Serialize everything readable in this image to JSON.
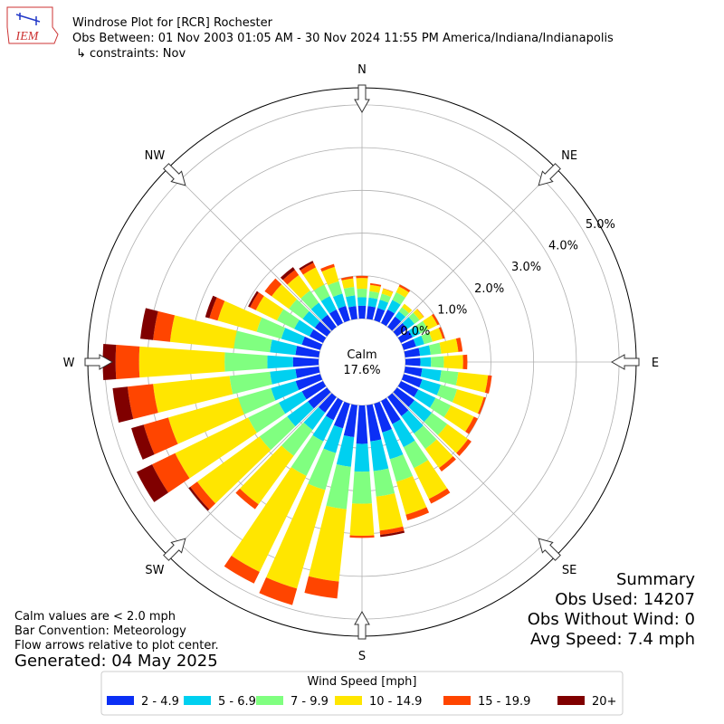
{
  "chart_data": {
    "type": "windrose",
    "title": "Windrose Plot for [RCR] Rochester",
    "subtitle": "Obs Between: 01 Nov 2003 01:05 AM - 30 Nov 2024 11:55 PM America/Indiana/Indianapolis",
    "constraints": "↳ constraints: Nov",
    "logo": "IEM",
    "calm_title": "Calm",
    "calm": {
      "value": 17.6,
      "label": "17.6%"
    },
    "compass": [
      "N",
      "NE",
      "E",
      "SE",
      "S",
      "SW",
      "W",
      "NW"
    ],
    "rlim": [
      0,
      5.4
    ],
    "rticks": [
      {
        "value": 0,
        "label": "0.0%"
      },
      {
        "value": 1,
        "label": "1.0%"
      },
      {
        "value": 2,
        "label": "2.0%"
      },
      {
        "value": 3,
        "label": "3.0%"
      },
      {
        "value": 4,
        "label": "4.0%"
      },
      {
        "value": 5,
        "label": "5.0%"
      }
    ],
    "x": [
      0,
      10,
      20,
      30,
      40,
      50,
      60,
      70,
      80,
      90,
      100,
      110,
      120,
      130,
      140,
      150,
      160,
      170,
      180,
      190,
      200,
      210,
      220,
      230,
      240,
      250,
      260,
      270,
      280,
      290,
      300,
      310,
      320,
      330,
      340,
      350
    ],
    "legend_title": "Wind Speed [mph]",
    "series": [
      {
        "name": "2 - 4.9",
        "color": "#0b2ff5",
        "values": [
          0.3,
          0.3,
          0.3,
          0.35,
          0.3,
          0.3,
          0.3,
          0.3,
          0.35,
          0.35,
          0.4,
          0.45,
          0.45,
          0.5,
          0.55,
          0.6,
          0.7,
          0.85,
          0.9,
          0.75,
          0.6,
          0.5,
          0.45,
          0.55,
          0.55,
          0.6,
          0.55,
          0.6,
          0.55,
          0.45,
          0.35,
          0.35,
          0.35,
          0.35,
          0.35,
          0.3
        ]
      },
      {
        "name": "5 - 6.9",
        "color": "#00d0f0",
        "values": [
          0.2,
          0.2,
          0.2,
          0.25,
          0.15,
          0.2,
          0.2,
          0.2,
          0.25,
          0.25,
          0.45,
          0.45,
          0.45,
          0.5,
          0.5,
          0.6,
          0.65,
          0.7,
          0.65,
          0.7,
          0.6,
          0.55,
          0.5,
          0.6,
          0.6,
          0.6,
          0.6,
          0.6,
          0.6,
          0.5,
          0.4,
          0.35,
          0.35,
          0.35,
          0.3,
          0.25
        ]
      },
      {
        "name": "7 - 9.9",
        "color": "#80ff80",
        "values": [
          0.2,
          0.15,
          0.15,
          0.2,
          0.12,
          0.15,
          0.2,
          0.2,
          0.25,
          0.3,
          0.4,
          0.4,
          0.4,
          0.45,
          0.45,
          0.55,
          0.55,
          0.6,
          0.75,
          1.0,
          0.9,
          0.9,
          0.75,
          0.8,
          0.8,
          0.8,
          0.95,
          1.0,
          0.85,
          0.6,
          0.45,
          0.4,
          0.35,
          0.3,
          0.3,
          0.2
        ]
      },
      {
        "name": "10 - 14.9",
        "color": "#ffe600",
        "values": [
          0.25,
          0.15,
          0.12,
          0.15,
          0.1,
          0.12,
          0.25,
          0.25,
          0.4,
          0.45,
          0.7,
          0.65,
          0.6,
          0.6,
          0.55,
          0.8,
          0.8,
          0.8,
          0.75,
          1.7,
          2.4,
          2.5,
          1.4,
          1.8,
          1.9,
          1.7,
          1.8,
          2.0,
          1.5,
          0.95,
          0.55,
          0.5,
          0.45,
          0.45,
          0.35,
          0.2
        ]
      },
      {
        "name": "15 - 19.9",
        "color": "#ff4500",
        "values": [
          0.05,
          0.04,
          0.01,
          0.05,
          0,
          0.01,
          0.05,
          0.05,
          0.1,
          0.1,
          0.09,
          0.05,
          0.1,
          0.1,
          0.1,
          0.12,
          0.14,
          0.1,
          0.05,
          0.4,
          0.4,
          0.3,
          0.14,
          0.2,
          0.6,
          0.6,
          0.6,
          0.55,
          0.4,
          0.2,
          0.15,
          0.2,
          0.15,
          0.12,
          0.07,
          0.05
        ]
      },
      {
        "name": "20+",
        "color": "#800000",
        "values": [
          0,
          0,
          0,
          0,
          0,
          0,
          0,
          0,
          0,
          0,
          0,
          0,
          0,
          0,
          0,
          0,
          0,
          0.05,
          0,
          0,
          0,
          0,
          0,
          0.05,
          0.4,
          0.3,
          0.35,
          0.3,
          0.3,
          0.1,
          0.05,
          0,
          0.08,
          0.05,
          0,
          0
        ]
      }
    ],
    "summary_title": "Summary",
    "summary": [
      "Obs Used: 14207",
      "Obs Without Wind: 0",
      "Avg Speed: 7.4 mph"
    ],
    "notes": [
      "Calm values are < 2.0 mph",
      "Bar Convention: Meteorology",
      "Flow arrows relative to plot center."
    ],
    "generated": "Generated: 04 May 2025"
  }
}
